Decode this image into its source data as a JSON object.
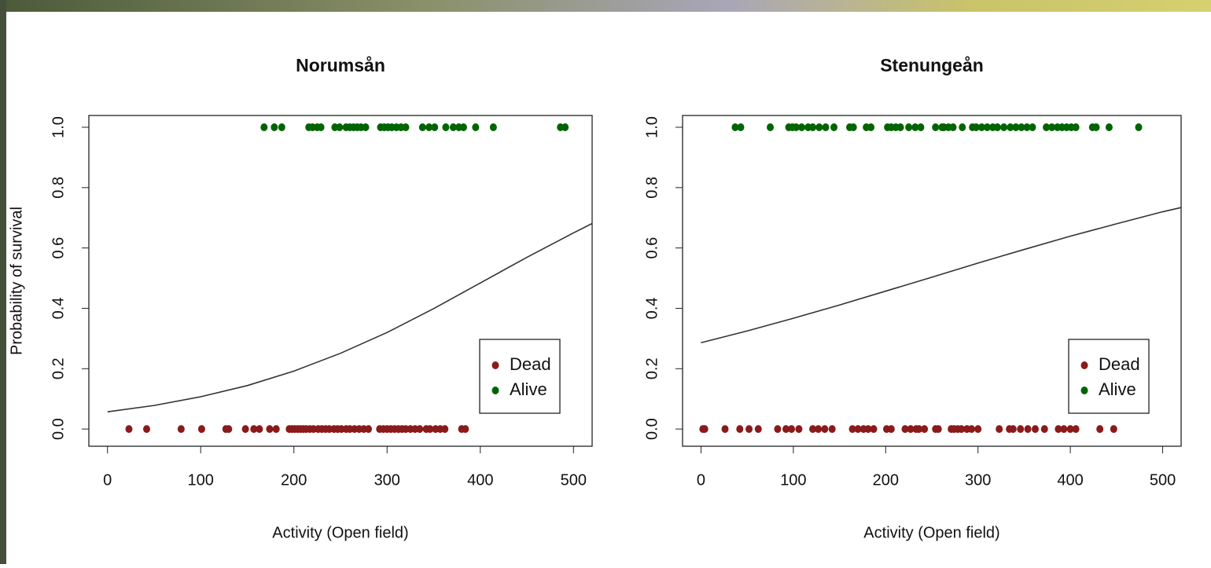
{
  "chart_data": [
    {
      "type": "scatter",
      "title": "Norumsån",
      "xlabel": "Activity (Open field)",
      "ylabel": "Probability of survival",
      "xlim": [
        -20,
        520
      ],
      "ylim": [
        -0.057,
        1.039
      ],
      "xticks": [
        0,
        100,
        200,
        300,
        400,
        500
      ],
      "yticks": [
        {
          "value": 0,
          "label": "0.0"
        },
        0.2,
        0.4,
        0.6,
        0.8,
        {
          "value": 1,
          "label": "1.0"
        }
      ],
      "grid": false,
      "legend": "lower right",
      "series": [
        {
          "name": "Dead",
          "color": "#8b1a1a",
          "x": [
            23,
            42,
            79,
            101,
            127,
            130,
            148,
            157,
            163,
            174,
            181,
            195,
            198,
            201,
            204,
            207,
            210,
            213,
            217,
            221,
            226,
            230,
            234,
            238,
            243,
            247,
            251,
            256,
            260,
            265,
            270,
            275,
            280,
            292,
            296,
            300,
            304,
            308,
            312,
            316,
            320,
            325,
            330,
            335,
            342,
            346,
            352,
            357,
            362,
            380,
            384
          ],
          "values": [
            0,
            0,
            0,
            0,
            0,
            0,
            0,
            0,
            0,
            0,
            0,
            0,
            0,
            0,
            0,
            0,
            0,
            0,
            0,
            0,
            0,
            0,
            0,
            0,
            0,
            0,
            0,
            0,
            0,
            0,
            0,
            0,
            0,
            0,
            0,
            0,
            0,
            0,
            0,
            0,
            0,
            0,
            0,
            0,
            0,
            0,
            0,
            0,
            0,
            0,
            0
          ]
        },
        {
          "name": "Alive",
          "color": "#006400",
          "x": [
            168,
            179,
            187,
            216,
            220,
            225,
            229,
            244,
            249,
            256,
            260,
            264,
            268,
            272,
            277,
            293,
            297,
            301,
            305,
            310,
            315,
            320,
            338,
            345,
            351,
            363,
            371,
            377,
            382,
            395,
            414,
            486,
            491
          ],
          "values": [
            1,
            1,
            1,
            1,
            1,
            1,
            1,
            1,
            1,
            1,
            1,
            1,
            1,
            1,
            1,
            1,
            1,
            1,
            1,
            1,
            1,
            1,
            1,
            1,
            1,
            1,
            1,
            1,
            1,
            1,
            1,
            1,
            1
          ]
        }
      ],
      "fit": {
        "color": "#333333",
        "x": [
          0,
          50,
          100,
          150,
          200,
          250,
          300,
          350,
          400,
          450,
          500,
          520
        ],
        "values": [
          0.057,
          0.078,
          0.107,
          0.144,
          0.192,
          0.251,
          0.32,
          0.399,
          0.484,
          0.569,
          0.65,
          0.681
        ]
      }
    },
    {
      "type": "scatter",
      "title": "Stenungeån",
      "xlabel": "Activity (Open field)",
      "xlim": [
        -20,
        520
      ],
      "ylim": [
        -0.057,
        1.039
      ],
      "xticks": [
        0,
        100,
        200,
        300,
        400,
        500
      ],
      "yticks": [
        {
          "value": 0,
          "label": "0.0"
        },
        0.2,
        0.4,
        0.6,
        0.8,
        {
          "value": 1,
          "label": "1.0"
        }
      ],
      "grid": false,
      "legend": "lower right",
      "series": [
        {
          "name": "Dead",
          "color": "#8b1a1a",
          "x": [
            2,
            4,
            26,
            42,
            52,
            62,
            83,
            92,
            98,
            106,
            121,
            127,
            134,
            142,
            164,
            170,
            176,
            181,
            187,
            201,
            206,
            221,
            227,
            233,
            236,
            242,
            254,
            257,
            271,
            274,
            278,
            282,
            288,
            293,
            300,
            323,
            334,
            338,
            346,
            354,
            362,
            372,
            387,
            393,
            400,
            406,
            432,
            447
          ],
          "values": [
            0,
            0,
            0,
            0,
            0,
            0,
            0,
            0,
            0,
            0,
            0,
            0,
            0,
            0,
            0,
            0,
            0,
            0,
            0,
            0,
            0,
            0,
            0,
            0,
            0,
            0,
            0,
            0,
            0,
            0,
            0,
            0,
            0,
            0,
            0,
            0,
            0,
            0,
            0,
            0,
            0,
            0,
            0,
            0,
            0,
            0,
            0,
            0
          ]
        },
        {
          "name": "Alive",
          "color": "#006400",
          "x": [
            37,
            43,
            75,
            95,
            99,
            103,
            109,
            116,
            121,
            128,
            135,
            144,
            161,
            165,
            179,
            184,
            202,
            206,
            211,
            216,
            225,
            232,
            238,
            254,
            261,
            263,
            268,
            273,
            283,
            294,
            298,
            304,
            310,
            316,
            321,
            328,
            335,
            341,
            347,
            353,
            359,
            374,
            380,
            386,
            391,
            396,
            401,
            406,
            424,
            428,
            442,
            474
          ],
          "values": [
            1,
            1,
            1,
            1,
            1,
            1,
            1,
            1,
            1,
            1,
            1,
            1,
            1,
            1,
            1,
            1,
            1,
            1,
            1,
            1,
            1,
            1,
            1,
            1,
            1,
            1,
            1,
            1,
            1,
            1,
            1,
            1,
            1,
            1,
            1,
            1,
            1,
            1,
            1,
            1,
            1,
            1,
            1,
            1,
            1,
            1,
            1,
            1,
            1,
            1,
            1,
            1
          ]
        }
      ],
      "fit": {
        "color": "#333333",
        "x": [
          0,
          50,
          100,
          150,
          200,
          250,
          300,
          350,
          400,
          450,
          500,
          520
        ],
        "values": [
          0.286,
          0.325,
          0.367,
          0.411,
          0.457,
          0.503,
          0.55,
          0.595,
          0.639,
          0.68,
          0.72,
          0.734
        ]
      }
    }
  ]
}
